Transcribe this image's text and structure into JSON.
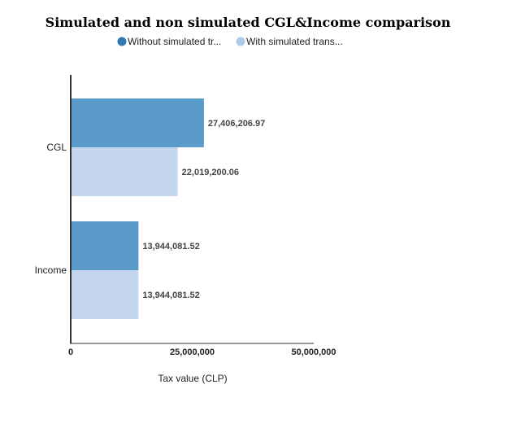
{
  "chart_data": {
    "type": "bar",
    "orientation": "horizontal",
    "title": "Simulated and non simulated CGL&Income comparison",
    "categories": [
      "CGL",
      "Income"
    ],
    "series": [
      {
        "name": "Without simulated tr...",
        "values": [
          27406206.97,
          13944081.52
        ],
        "labels": [
          "27,406,206.97",
          "13,944,081.52"
        ],
        "color": "#5b9bca",
        "legend_color": "#2e78b5"
      },
      {
        "name": "With simulated trans...",
        "values": [
          22019200.06,
          13944081.52
        ],
        "labels": [
          "22,019,200.06",
          "13,944,081.52"
        ],
        "color": "#c5d7ef",
        "legend_color": "#aec9e6"
      }
    ],
    "xlabel": "Tax value (CLP)",
    "ylabel": "",
    "xlim": [
      0,
      50000000
    ],
    "xticks": [
      0,
      25000000,
      50000000
    ],
    "xtick_labels": [
      "0",
      "25,000,000",
      "50,000,000"
    ],
    "grid": false,
    "legend_position": "top"
  }
}
